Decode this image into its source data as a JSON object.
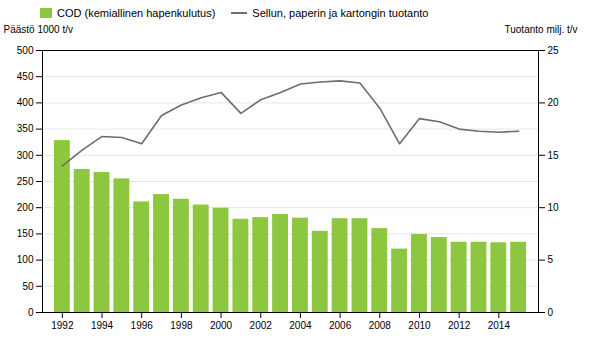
{
  "chart_data": {
    "type": "bar",
    "ylabel": "Päästö 1000 t/v",
    "y2label": "Tuotanto milj. t/v",
    "x": [
      1992,
      1993,
      1994,
      1995,
      1996,
      1997,
      1998,
      1999,
      2000,
      2001,
      2002,
      2003,
      2004,
      2005,
      2006,
      2007,
      2008,
      2009,
      2010,
      2011,
      2012,
      2013,
      2014,
      2015
    ],
    "series": [
      {
        "name": "COD (kemiallinen hapenkulutus)",
        "type": "bar",
        "color": "#8dc63f",
        "values": [
          328,
          273,
          267,
          255,
          211,
          225,
          216,
          205,
          199,
          178,
          181,
          187,
          180,
          155,
          179,
          179,
          160,
          121,
          149,
          143,
          134,
          134,
          133,
          134
        ]
      },
      {
        "name": "Sellun, paperin ja kartongin tuotanto",
        "type": "line",
        "axis": "y2",
        "color": "#6d6d6d",
        "values": [
          14.0,
          15.5,
          16.8,
          16.7,
          16.1,
          18.8,
          19.8,
          20.5,
          21.0,
          19.0,
          20.3,
          21.0,
          21.8,
          22.0,
          22.1,
          21.9,
          19.5,
          16.1,
          18.5,
          18.2,
          17.5,
          17.3,
          17.2,
          17.3
        ]
      }
    ],
    "xlim": [
      1991,
      2016
    ],
    "xticks": [
      1992,
      1994,
      1996,
      1998,
      2000,
      2002,
      2004,
      2006,
      2008,
      2010,
      2012,
      2014
    ],
    "ylim": [
      0,
      500
    ],
    "yticks": [
      0,
      50,
      100,
      150,
      200,
      250,
      300,
      350,
      400,
      450,
      500
    ],
    "y2lim": [
      0,
      25
    ],
    "y2ticks": [
      0,
      5,
      10,
      15,
      20,
      25
    ],
    "grid": true,
    "legend": "upper left"
  }
}
